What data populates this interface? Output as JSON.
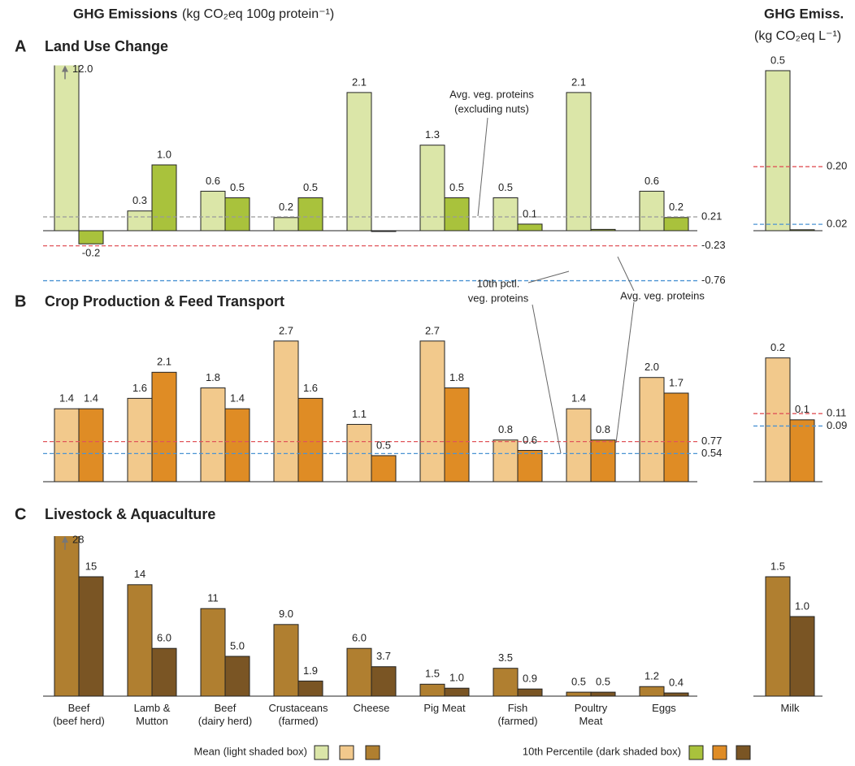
{
  "header": {
    "title": "GHG Emissions",
    "unit": "(kg CO₂eq 100g protein⁻¹)",
    "milk_title": "GHG Emiss.",
    "milk_unit": "(kg CO₂eq L⁻¹)"
  },
  "chart_data": [
    {
      "type": "bar",
      "label": "A",
      "title": "Land Use Change",
      "ylim": [
        -0.8,
        2.5
      ],
      "series": [
        {
          "color": "#dbe6a8",
          "values": [
            12.0,
            0.3,
            0.6,
            0.2,
            2.1,
            1.3,
            0.5,
            2.1,
            0.6
          ],
          "value_labels": [
            "12.0",
            "0.3",
            "0.6",
            "0.2",
            "2.1",
            "1.3",
            "0.5",
            "2.1",
            "0.6"
          ]
        },
        {
          "color": "#a9c23c",
          "values": [
            -0.2,
            1.0,
            0.5,
            0.5,
            -0.01,
            0.5,
            0.1,
            0.02,
            0.2
          ],
          "value_labels": [
            "-0.2",
            "1.0",
            "0.5",
            "0.5",
            null,
            "0.5",
            "0.1",
            null,
            "0.2"
          ]
        }
      ],
      "ref_lines": [
        {
          "value": 0.21,
          "label": "0.21",
          "color": "#9a9a9a"
        },
        {
          "value": -0.23,
          "label": "-0.23",
          "color": "#e0555a"
        },
        {
          "value": -0.76,
          "label": "-0.76",
          "color": "#4b93d3"
        }
      ]
    },
    {
      "type": "bar",
      "ylim": [
        0,
        0.5
      ],
      "series": [
        {
          "color": "#dbe6a8",
          "values": [
            0.5
          ],
          "value_labels": [
            "0.5"
          ]
        },
        {
          "color": "#a9c23c",
          "values": [
            0.003
          ],
          "value_labels": [
            null
          ]
        }
      ],
      "ref_lines": [
        {
          "value": 0.2,
          "label": "0.20",
          "color": "#e0555a"
        },
        {
          "value": 0.02,
          "label": "0.02",
          "color": "#4b93d3"
        }
      ]
    },
    {
      "type": "bar",
      "label": "B",
      "title": "Crop Production & Feed Transport",
      "ylim": [
        0,
        2.9
      ],
      "series": [
        {
          "color": "#f2c98c",
          "values": [
            1.4,
            1.6,
            1.8,
            2.7,
            1.1,
            2.7,
            0.8,
            1.4,
            2.0
          ],
          "value_labels": [
            "1.4",
            "1.6",
            "1.8",
            "2.7",
            "1.1",
            "2.7",
            "0.8",
            "1.4",
            "2.0"
          ]
        },
        {
          "color": "#df8c25",
          "values": [
            1.4,
            2.1,
            1.4,
            1.6,
            0.5,
            1.8,
            0.6,
            0.8,
            1.7
          ],
          "value_labels": [
            "1.4",
            "2.1",
            "1.4",
            "1.6",
            "0.5",
            "1.8",
            "0.6",
            "0.8",
            "1.7"
          ]
        }
      ],
      "ref_lines": [
        {
          "value": 0.77,
          "label": "0.77",
          "color": "#e0555a"
        },
        {
          "value": 0.54,
          "label": "0.54",
          "color": "#4b93d3"
        }
      ]
    },
    {
      "type": "bar",
      "ylim": [
        0,
        0.21
      ],
      "series": [
        {
          "color": "#f2c98c",
          "values": [
            0.2
          ],
          "value_labels": [
            "0.2"
          ]
        },
        {
          "color": "#df8c25",
          "values": [
            0.1
          ],
          "value_labels": [
            "0.1"
          ]
        }
      ],
      "ref_lines": [
        {
          "value": 0.11,
          "label": "0.11",
          "color": "#e0555a"
        },
        {
          "value": 0.09,
          "label": "0.09",
          "color": "#4b93d3"
        }
      ]
    },
    {
      "type": "bar",
      "label": "C",
      "title": "Livestock & Aquaculture",
      "ylim": [
        0,
        20
      ],
      "categories": [
        "Beef\n(beef herd)",
        "Lamb &\nMutton",
        "Beef\n(dairy herd)",
        "Crustaceans\n(farmed)",
        "Cheese",
        "Pig Meat",
        "Fish\n(farmed)",
        "Poultry\nMeat",
        "Eggs"
      ],
      "series": [
        {
          "color": "#b07f30",
          "values": [
            28,
            14,
            11,
            9.0,
            6.0,
            1.5,
            3.5,
            0.5,
            1.2
          ],
          "value_labels": [
            "28",
            "14",
            "11",
            "9.0",
            "6.0",
            "1.5",
            "3.5",
            "0.5",
            "1.2"
          ]
        },
        {
          "color": "#7a5524",
          "values": [
            15,
            6.0,
            5.0,
            1.9,
            3.7,
            1.0,
            0.9,
            0.5,
            0.4
          ],
          "value_labels": [
            "15",
            "6.0",
            "5.0",
            "1.9",
            "3.7",
            "1.0",
            "0.9",
            "0.5",
            "0.4"
          ]
        }
      ]
    },
    {
      "type": "bar",
      "ylim": [
        0,
        1.5
      ],
      "categories": [
        "Milk"
      ],
      "series": [
        {
          "color": "#b07f30",
          "values": [
            1.5
          ],
          "value_labels": [
            "1.5"
          ]
        },
        {
          "color": "#7a5524",
          "values": [
            1.0
          ],
          "value_labels": [
            "1.0"
          ]
        }
      ]
    }
  ],
  "annotations": [
    {
      "lines": [
        "Avg. veg. proteins",
        "(excluding nuts)"
      ]
    },
    {
      "lines": [
        "10th pctl.",
        "veg. proteins"
      ]
    },
    {
      "lines": [
        "Avg. veg. proteins"
      ]
    }
  ],
  "legend": {
    "items": [
      {
        "label": "Mean (light shaded box)"
      },
      {
        "label": "10th Percentile (dark shaded box)"
      }
    ]
  }
}
